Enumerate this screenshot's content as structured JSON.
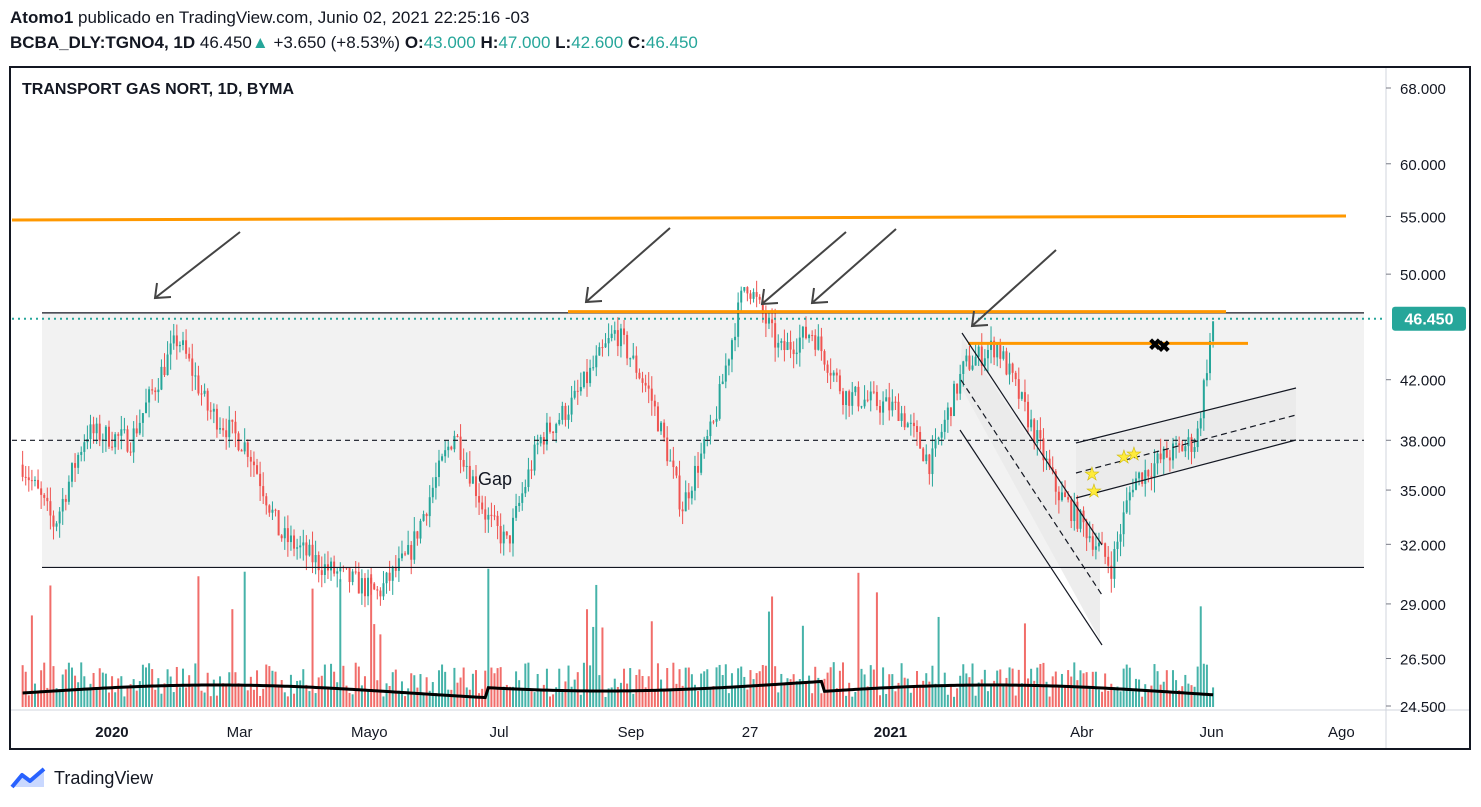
{
  "header": {
    "author": "Atomo1",
    "published": "publicado en TradingView.com, Junio 02, 2021 22:25:16 -03",
    "symbol": "BCBA_DLY:TGNO4, 1D",
    "last": "46.450",
    "change_arrow": "▲",
    "change": "+3.650 (+8.53%)",
    "o_label": "O:",
    "o_value": "43.000",
    "h_label": "H:",
    "h_value": "47.000",
    "l_label": "L:",
    "l_value": "42.600",
    "c_label": "C:",
    "c_value": "46.450"
  },
  "footer": {
    "brand": "TradingView",
    "logo_icon": "tradingview-logo-icon"
  },
  "colors": {
    "up": "#26a69a",
    "down": "#ef5350",
    "orange": "#ff9800",
    "price_tag": "#26a69a"
  },
  "chart_data": {
    "type": "candlestick",
    "title": "TRANSPORT GAS NORT, 1D, BYMA",
    "price_label": "46.450",
    "y_scale": "log",
    "ylim": [
      24.5,
      70
    ],
    "y_ticks": [
      "68.000",
      "60.000",
      "55.000",
      "50.000",
      "42.000",
      "38.000",
      "35.000",
      "32.000",
      "29.000",
      "26.500",
      "24.500"
    ],
    "y_tick_values": [
      68,
      60,
      55,
      50,
      42,
      38,
      35,
      32,
      29,
      26.5,
      24.5
    ],
    "x_ticks": [
      "2020",
      "Mar",
      "Mayo",
      "Jul",
      "Sep",
      "27",
      "2021",
      "Abr",
      "Jun",
      "Ago"
    ],
    "x_tick_dates": [
      "2020-01-01",
      "2020-03-01",
      "2020-05-01",
      "2020-07-01",
      "2020-09-01",
      "2020-10-27",
      "2021-01-01",
      "2021-04-01",
      "2021-06-01",
      "2021-08-01"
    ],
    "price_path": [
      [
        "2019-11-20",
        36.5
      ],
      [
        "2019-12-05",
        33.0
      ],
      [
        "2019-12-20",
        38.5
      ],
      [
        "2020-01-10",
        38.0
      ],
      [
        "2020-02-01",
        45.0
      ],
      [
        "2020-02-15",
        40.0
      ],
      [
        "2020-03-05",
        37.5
      ],
      [
        "2020-03-20",
        32.5
      ],
      [
        "2020-04-10",
        30.8
      ],
      [
        "2020-05-05",
        29.5
      ],
      [
        "2020-05-20",
        31.5
      ],
      [
        "2020-06-10",
        38.5
      ],
      [
        "2020-06-25",
        33.5
      ],
      [
        "2020-07-05",
        32.0
      ],
      [
        "2020-07-20",
        38.0
      ],
      [
        "2020-08-05",
        40.5
      ],
      [
        "2020-08-25",
        45.5
      ],
      [
        "2020-09-10",
        41.0
      ],
      [
        "2020-09-25",
        34.0
      ],
      [
        "2020-10-10",
        39.0
      ],
      [
        "2020-10-25",
        49.5
      ],
      [
        "2020-11-10",
        44.0
      ],
      [
        "2020-11-25",
        45.5
      ],
      [
        "2020-12-10",
        41.0
      ],
      [
        "2021-01-05",
        40.0
      ],
      [
        "2021-01-20",
        36.5
      ],
      [
        "2021-02-05",
        43.0
      ],
      [
        "2021-02-20",
        44.5
      ],
      [
        "2021-03-05",
        40.0
      ],
      [
        "2021-03-20",
        35.0
      ],
      [
        "2021-04-05",
        32.5
      ],
      [
        "2021-04-15",
        30.8
      ],
      [
        "2021-04-25",
        35.5
      ],
      [
        "2021-05-10",
        37.0
      ],
      [
        "2021-05-25",
        38.0
      ],
      [
        "2021-06-02",
        46.45
      ]
    ],
    "horizontal_levels": [
      {
        "name": "resistance-line",
        "price": 46.9,
        "color": "#131722"
      },
      {
        "name": "mid-dashed-line",
        "price": 38.0,
        "color": "#131722",
        "dashed": true
      },
      {
        "name": "support-line",
        "price": 30.8,
        "color": "#131722"
      },
      {
        "name": "orange-top-line",
        "price": 55.0,
        "color": "#ff9800"
      },
      {
        "name": "orange-resistance-line",
        "price": 47.0,
        "color": "#ff9800"
      },
      {
        "name": "orange-short-line",
        "price": 44.6,
        "color": "#ff9800"
      }
    ],
    "annotations": [
      {
        "text": "Gap",
        "date": "2020-07-01",
        "price": 35.5
      }
    ],
    "volume_ma": true
  }
}
